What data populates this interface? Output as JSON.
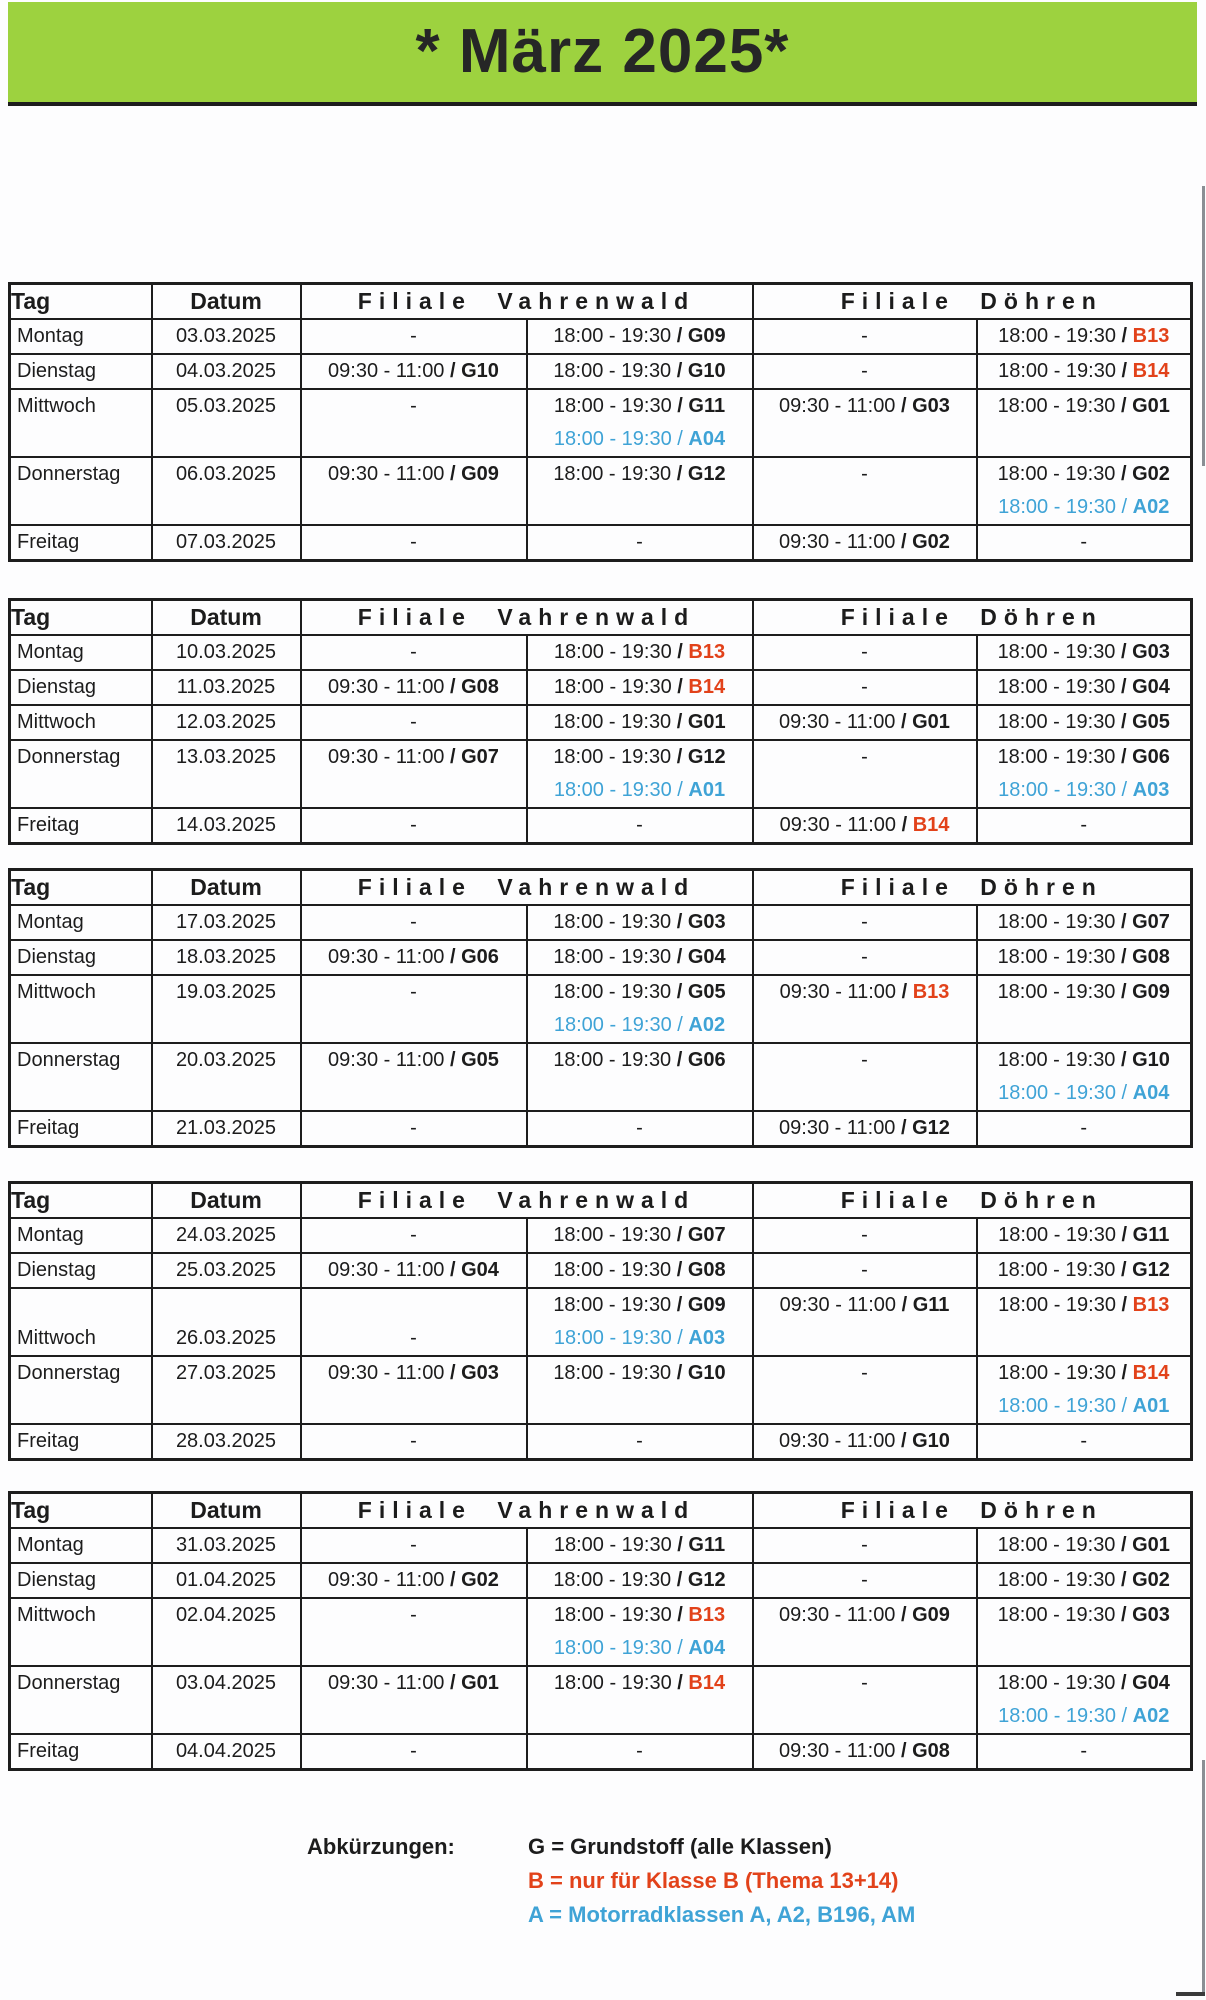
{
  "page": {
    "title": "* März 2025*"
  },
  "colors": {
    "banner_green": "#9dd23f",
    "ink": "#1c1c1c",
    "code_b_red": "#e2421a",
    "code_a_blue": "#3fa3d6"
  },
  "table_headers": {
    "tag": "Tag",
    "datum": "Datum",
    "filiale_vahrenwald": "Filiale Vahrenwald",
    "filiale_doehren": "Filiale Döhren"
  },
  "tables": [
    {
      "rows": [
        {
          "day": "Montag",
          "date": "03.03.2025",
          "cells": [
            [
              "-"
            ],
            [
              "18:00 - 19:30 / G09"
            ],
            [
              "-"
            ],
            [
              "18:00 - 19:30 / B13"
            ]
          ]
        },
        {
          "day": "Dienstag",
          "date": "04.03.2025",
          "cells": [
            [
              "09:30 - 11:00 / G10"
            ],
            [
              "18:00 - 19:30 / G10"
            ],
            [
              "-"
            ],
            [
              "18:00 - 19:30 / B14"
            ]
          ]
        },
        {
          "day": "Mittwoch",
          "date": "05.03.2025",
          "cells": [
            [
              "-"
            ],
            [
              "18:00 - 19:30 / G11",
              "18:00 - 19:30 / A04"
            ],
            [
              "09:30 - 11:00 / G03"
            ],
            [
              "18:00 - 19:30 / G01"
            ]
          ]
        },
        {
          "day": "Donnerstag",
          "date": "06.03.2025",
          "cells": [
            [
              "09:30 - 11:00 / G09"
            ],
            [
              "18:00 - 19:30 / G12"
            ],
            [
              "-"
            ],
            [
              "18:00 - 19:30 / G02",
              "18:00 - 19:30 / A02"
            ]
          ]
        },
        {
          "day": "Freitag",
          "date": "07.03.2025",
          "cells": [
            [
              "-"
            ],
            [
              "-"
            ],
            [
              "09:30 - 11:00 / G02"
            ],
            [
              "-"
            ]
          ]
        }
      ]
    },
    {
      "rows": [
        {
          "day": "Montag",
          "date": "10.03.2025",
          "cells": [
            [
              "-"
            ],
            [
              "18:00 - 19:30 / B13"
            ],
            [
              "-"
            ],
            [
              "18:00 - 19:30 / G03"
            ]
          ]
        },
        {
          "day": "Dienstag",
          "date": "11.03.2025",
          "cells": [
            [
              "09:30 - 11:00 / G08"
            ],
            [
              "18:00 - 19:30 / B14"
            ],
            [
              "-"
            ],
            [
              "18:00 - 19:30 / G04"
            ]
          ]
        },
        {
          "day": "Mittwoch",
          "date": "12.03.2025",
          "cells": [
            [
              "-"
            ],
            [
              "18:00 - 19:30 / G01"
            ],
            [
              "09:30 - 11:00 / G01"
            ],
            [
              "18:00 - 19:30 / G05"
            ]
          ]
        },
        {
          "day": "Donnerstag",
          "date": "13.03.2025",
          "cells": [
            [
              "09:30 - 11:00 / G07"
            ],
            [
              "18:00 - 19:30 / G12",
              "18:00 - 19:30 / A01"
            ],
            [
              "-"
            ],
            [
              "18:00 - 19:30 / G06",
              "18:00 - 19:30 / A03"
            ]
          ]
        },
        {
          "day": "Freitag",
          "date": "14.03.2025",
          "cells": [
            [
              "-"
            ],
            [
              "-"
            ],
            [
              "09:30 - 11:00 / B14"
            ],
            [
              "-"
            ]
          ]
        }
      ]
    },
    {
      "rows": [
        {
          "day": "Montag",
          "date": "17.03.2025",
          "cells": [
            [
              "-"
            ],
            [
              "18:00 - 19:30 / G03"
            ],
            [
              "-"
            ],
            [
              "18:00 - 19:30 / G07"
            ]
          ]
        },
        {
          "day": "Dienstag",
          "date": "18.03.2025",
          "cells": [
            [
              "09:30 - 11:00 / G06"
            ],
            [
              "18:00 - 19:30 / G04"
            ],
            [
              "-"
            ],
            [
              "18:00 - 19:30 / G08"
            ]
          ]
        },
        {
          "day": "Mittwoch",
          "date": "19.03.2025",
          "cells": [
            [
              "-"
            ],
            [
              "18:00 - 19:30 / G05",
              "18:00 - 19:30 / A02"
            ],
            [
              "09:30 - 11:00 / B13"
            ],
            [
              "18:00 - 19:30 / G09"
            ]
          ]
        },
        {
          "day": "Donnerstag",
          "date": "20.03.2025",
          "cells": [
            [
              "09:30 - 11:00 / G05"
            ],
            [
              "18:00 - 19:30 / G06"
            ],
            [
              "-"
            ],
            [
              "18:00 - 19:30 / G10",
              "18:00 - 19:30 / A04"
            ]
          ]
        },
        {
          "day": "Freitag",
          "date": "21.03.2025",
          "cells": [
            [
              "-"
            ],
            [
              "-"
            ],
            [
              "09:30 - 11:00 / G12"
            ],
            [
              "-"
            ]
          ]
        }
      ]
    },
    {
      "rows": [
        {
          "day": "Montag",
          "date": "24.03.2025",
          "cells": [
            [
              "-"
            ],
            [
              "18:00 - 19:30 / G07"
            ],
            [
              "-"
            ],
            [
              "18:00 - 19:30 / G11"
            ]
          ]
        },
        {
          "day": "Dienstag",
          "date": "25.03.2025",
          "cells": [
            [
              "09:30 - 11:00 / G04"
            ],
            [
              "18:00 - 19:30 / G08"
            ],
            [
              "-"
            ],
            [
              "18:00 - 19:30 / G12"
            ]
          ]
        },
        {
          "day": "Mittwoch",
          "date": "26.03.2025",
          "valign": [
            "b",
            "b",
            "b",
            "t",
            "t",
            "t"
          ],
          "cells": [
            [
              "-"
            ],
            [
              "18:00 - 19:30 / G09",
              "18:00 - 19:30 / A03"
            ],
            [
              "09:30 - 11:00 / G11"
            ],
            [
              "18:00 - 19:30 / B13"
            ]
          ]
        },
        {
          "day": "Donnerstag",
          "date": "27.03.2025",
          "cells": [
            [
              "09:30 - 11:00 / G03"
            ],
            [
              "18:00 - 19:30 / G10"
            ],
            [
              "-"
            ],
            [
              "18:00 - 19:30 / B14",
              "18:00 - 19:30 / A01"
            ]
          ]
        },
        {
          "day": "Freitag",
          "date": "28.03.2025",
          "cells": [
            [
              "-"
            ],
            [
              "-"
            ],
            [
              "09:30 - 11:00 / G10"
            ],
            [
              "-"
            ]
          ]
        }
      ]
    },
    {
      "rows": [
        {
          "day": "Montag",
          "date": "31.03.2025",
          "cells": [
            [
              "-"
            ],
            [
              "18:00 - 19:30 / G11"
            ],
            [
              "-"
            ],
            [
              "18:00 - 19:30 / G01"
            ]
          ]
        },
        {
          "day": "Dienstag",
          "date": "01.04.2025",
          "cells": [
            [
              "09:30 - 11:00 / G02"
            ],
            [
              "18:00 - 19:30 / G12"
            ],
            [
              "-"
            ],
            [
              "18:00 - 19:30 / G02"
            ]
          ]
        },
        {
          "day": "Mittwoch",
          "date": "02.04.2025",
          "cells": [
            [
              "-"
            ],
            [
              "18:00 - 19:30 / B13",
              "18:00 - 19:30 / A04"
            ],
            [
              "09:30 - 11:00 / G09"
            ],
            [
              "18:00 - 19:30 / G03"
            ]
          ]
        },
        {
          "day": "Donnerstag",
          "date": "03.04.2025",
          "cells": [
            [
              "09:30 - 11:00 / G01"
            ],
            [
              "18:00 - 19:30 / B14"
            ],
            [
              "-"
            ],
            [
              "18:00 - 19:30 / G04",
              "18:00 - 19:30 / A02"
            ]
          ]
        },
        {
          "day": "Freitag",
          "date": "04.04.2025",
          "cells": [
            [
              "-"
            ],
            [
              "-"
            ],
            [
              "09:30 - 11:00 / G08"
            ],
            [
              "-"
            ]
          ]
        }
      ]
    }
  ],
  "legend": {
    "label": "Abkürzungen:",
    "items": [
      {
        "text": "G = Grundstoff (alle Klassen)",
        "color": "#1c1c1c"
      },
      {
        "text": "B = nur für Klasse B (Thema 13+14)",
        "color": "#e2421a"
      },
      {
        "text": "A = Motorradklassen A, A2, B196, AM",
        "color": "#3fa3d6"
      }
    ]
  }
}
